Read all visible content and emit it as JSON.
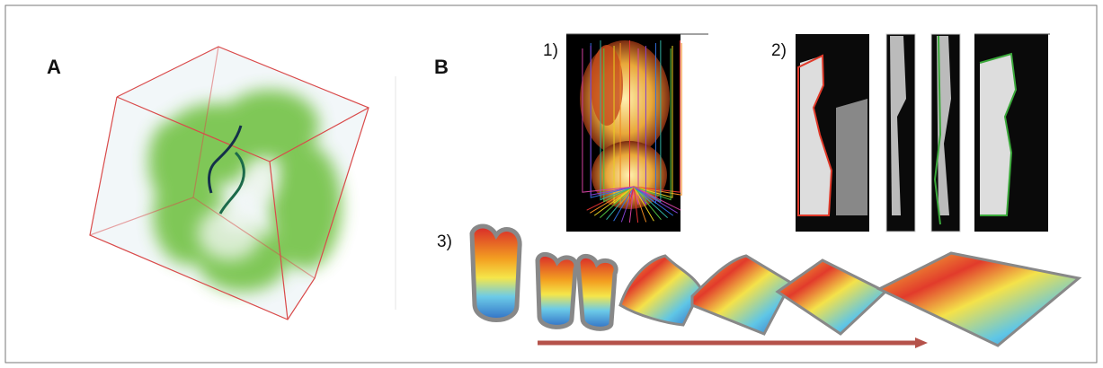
{
  "panels": [
    {
      "label": "A"
    },
    {
      "label": "B",
      "steps": [
        "1)",
        "2)",
        "3)"
      ]
    }
  ]
}
